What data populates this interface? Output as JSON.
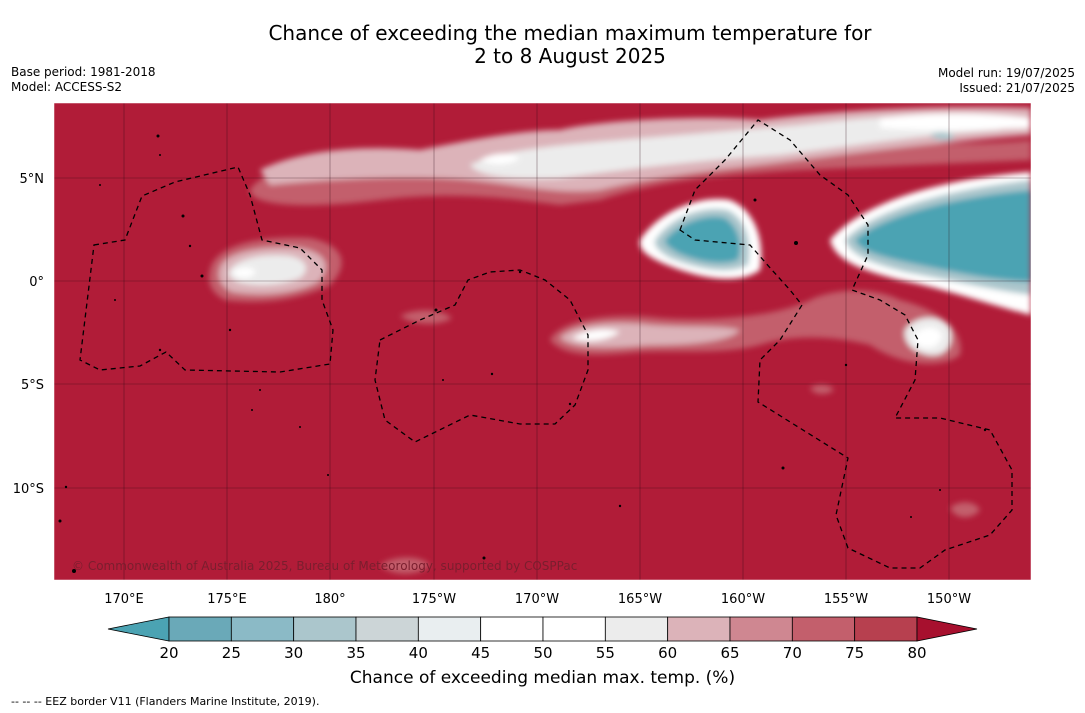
{
  "title": {
    "line1": "Chance of exceeding the median maximum temperature for",
    "line2": "2 to 8 August 2025"
  },
  "meta_left": {
    "base_period": "Base period: 1981-2018",
    "model": "Model: ACCESS-S2"
  },
  "meta_right": {
    "model_run": "Model run: 19/07/2025",
    "issued": "Issued: 21/07/2025"
  },
  "map": {
    "lon_labels": [
      "170°E",
      "175°E",
      "180°",
      "175°W",
      "170°W",
      "165°W",
      "160°W",
      "155°W",
      "150°W"
    ],
    "lat_labels": [
      "5°N",
      "0°",
      "5°S",
      "10°S"
    ],
    "copyright": "© Commonwealth of Australia 2025, Bureau of Meteorology, supported by COSPPac",
    "background_color": "#b11c38",
    "eez_border_style": "dashed-black"
  },
  "colorbar": {
    "ticks": [
      "20",
      "25",
      "30",
      "35",
      "40",
      "45",
      "50",
      "55",
      "60",
      "65",
      "70",
      "75",
      "80"
    ],
    "colors": [
      "#6aa9b8",
      "#8bbac6",
      "#abc6cc",
      "#ccd5d7",
      "#e9eef0",
      "#ffffff",
      "#ffffff",
      "#ececec",
      "#dcb3b9",
      "#cf8791",
      "#c35f6c",
      "#b7404f"
    ],
    "below_color": "#4ba3b3",
    "above_color": "#a7102e",
    "title": "Chance of exceeding median max. temp. (%)"
  },
  "footnote": "--  --  -- EEZ border V11 (Flanders Marine Institute, 2019)."
}
